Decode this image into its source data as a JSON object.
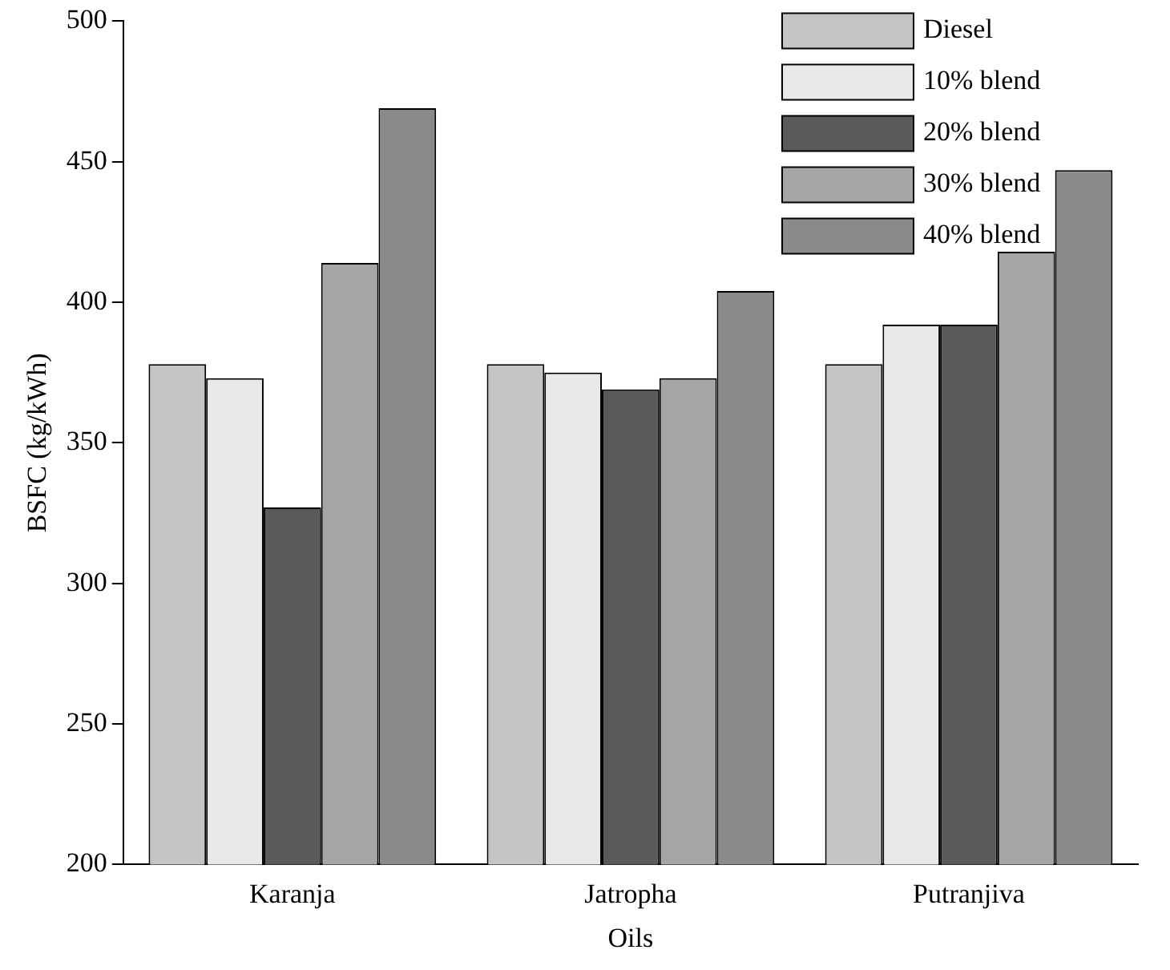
{
  "chart_data": {
    "type": "bar",
    "xlabel": "Oils",
    "ylabel": "BSFC (kg/kWh)",
    "categories": [
      "Karanja",
      "Jatropha",
      "Putranjiva"
    ],
    "series": [
      {
        "name": "Diesel",
        "color": "#c4c4c4",
        "values": [
          378,
          378,
          378
        ]
      },
      {
        "name": "10% blend",
        "color": "#e8e8e8",
        "values": [
          373,
          375,
          392
        ]
      },
      {
        "name": "20% blend",
        "color": "#5a5a5a",
        "values": [
          327,
          369,
          392
        ]
      },
      {
        "name": "30% blend",
        "color": "#a6a6a6",
        "values": [
          414,
          373,
          418
        ]
      },
      {
        "name": "40% blend",
        "color": "#8a8a8a",
        "values": [
          469,
          404,
          447
        ]
      }
    ],
    "ylim": [
      200,
      500
    ],
    "yticks": [
      200,
      250,
      300,
      350,
      400,
      450,
      500
    ],
    "grid": false,
    "legend": "top right"
  }
}
